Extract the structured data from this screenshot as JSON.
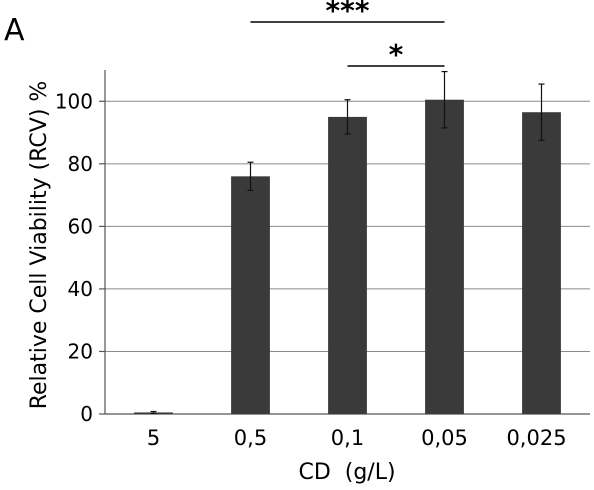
{
  "panel_label": "A",
  "chart_data": {
    "type": "bar",
    "categories": [
      "5",
      "0,5",
      "0,1",
      "0,05",
      "0,025"
    ],
    "values": [
      0.5,
      76,
      95,
      100.5,
      96.5
    ],
    "errors": [
      0.3,
      4.5,
      5.5,
      9.0,
      9.0
    ],
    "xlabel": "CD  (g/L)",
    "ylabel": "Relative Cell Viability (RCV) %",
    "ylim": [
      0,
      110
    ],
    "yticks": [
      0,
      20,
      40,
      60,
      80,
      100
    ],
    "grid": true,
    "bar_color": "#3a3a3a",
    "significance": [
      {
        "label": "***",
        "from": "0,5",
        "to": "0,05"
      },
      {
        "label": "*",
        "from": "0,1",
        "to": "0,05"
      }
    ]
  }
}
